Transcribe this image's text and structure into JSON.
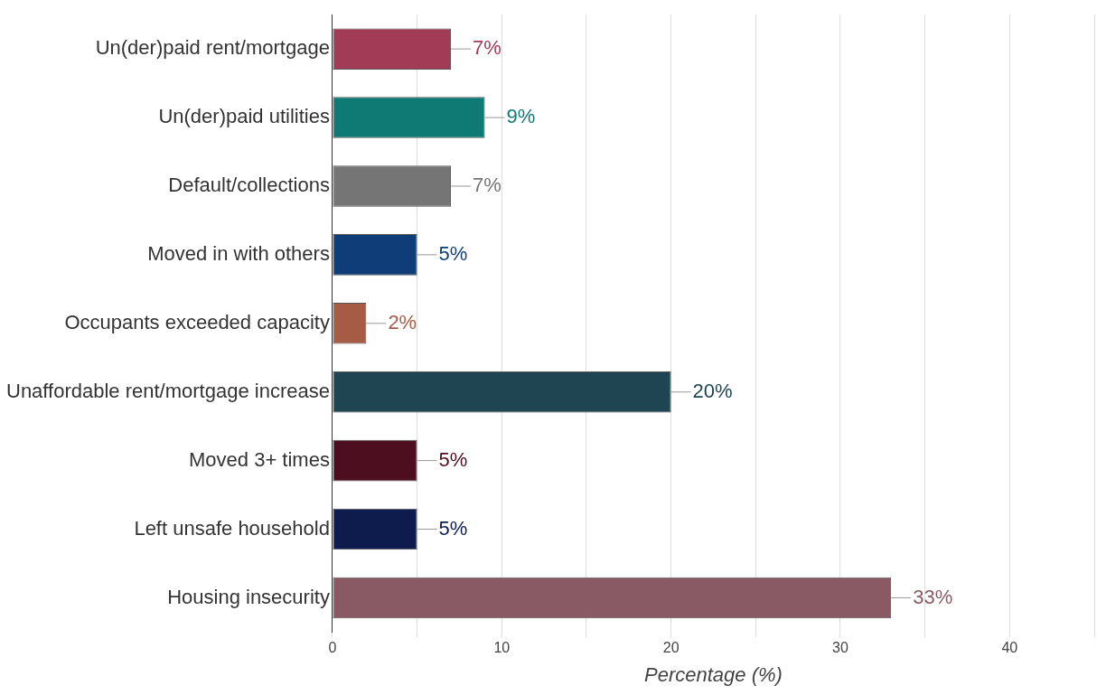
{
  "chart_data": {
    "type": "bar",
    "orientation": "horizontal",
    "xlabel": "Percentage (%)",
    "categories": [
      "Un(der)paid rent/mortgage",
      "Un(der)paid utilities",
      "Default/collections",
      "Moved in with others",
      "Occupants exceeded capacity",
      "Unaffordable rent/mortgage increase",
      "Moved 3+ times",
      "Left unsafe household",
      "Housing insecurity"
    ],
    "values": [
      7,
      9,
      7,
      5,
      2,
      20,
      5,
      5,
      33
    ],
    "colors": [
      "#a23b55",
      "#0e7a73",
      "#757575",
      "#0f3d78",
      "#a65b45",
      "#1f4452",
      "#4d0f1f",
      "#0d1b4d",
      "#8a5a64"
    ],
    "value_labels": [
      "7%",
      "9%",
      "7%",
      "5%",
      "2%",
      "20%",
      "5%",
      "5%",
      "33%"
    ],
    "xlim": [
      0,
      45
    ],
    "xticks": [
      0,
      {
        "value": 5,
        "label": null
      },
      10,
      {
        "value": 15,
        "label": null
      },
      20,
      {
        "value": 25,
        "label": null
      },
      30,
      {
        "value": 35,
        "label": null
      },
      40,
      {
        "value": 45,
        "label": null
      }
    ],
    "grid": "x",
    "legend": false
  }
}
